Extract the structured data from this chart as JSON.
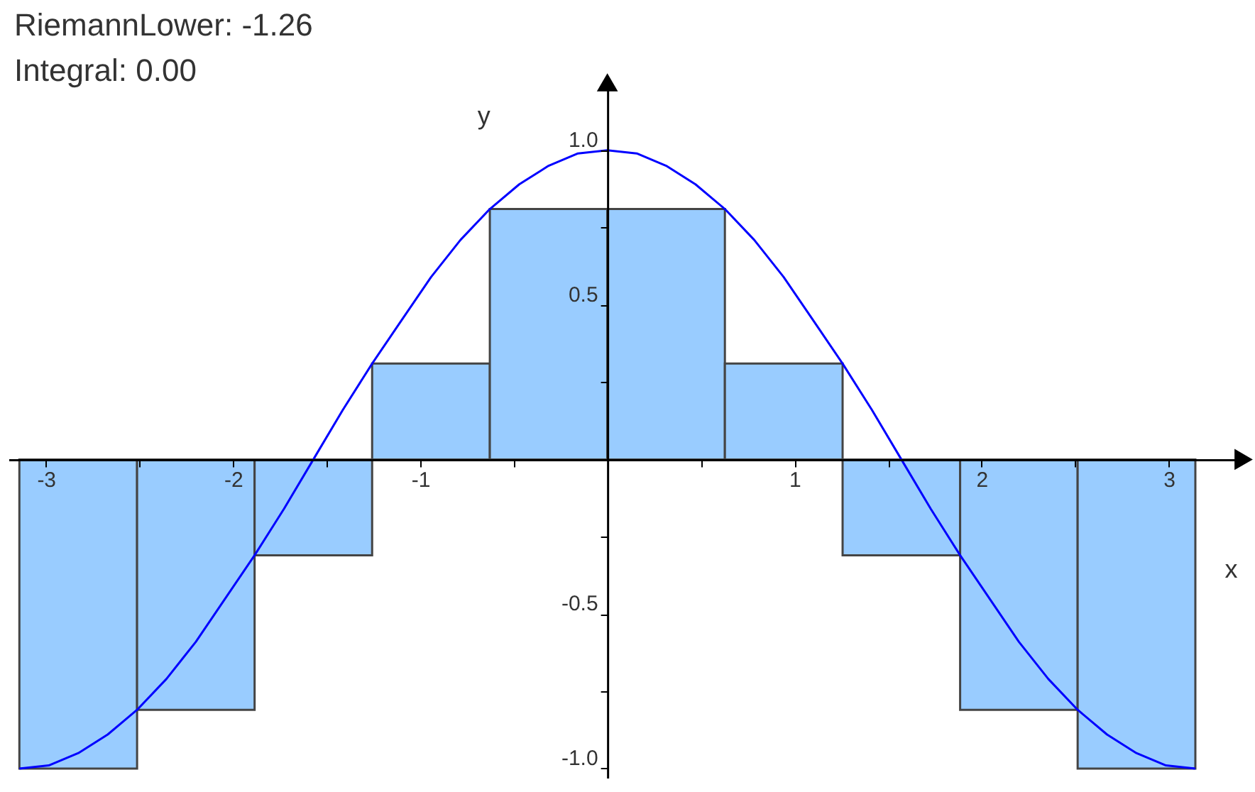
{
  "chart_data": {
    "type": "histogram",
    "annotations": [
      "RiemannLower: -1.26",
      "Integral:  0.00"
    ],
    "xlabel": "x",
    "ylabel": "y",
    "bins": [
      -3.142,
      -2.513,
      -1.885,
      -1.257,
      -0.628,
      0,
      0.628,
      1.257,
      1.885,
      2.513,
      3.142
    ],
    "values": [
      -1,
      -0.81,
      -0.31,
      0.31,
      0.81,
      0.81,
      0.31,
      -0.31,
      -0.81,
      -1
    ],
    "color": "#99ccff",
    "series": [
      {
        "type": "line",
        "color": "#0000ff",
        "x": [
          -3.142,
          -2.985,
          -2.827,
          -2.67,
          -2.513,
          -2.356,
          -2.199,
          -2.042,
          -1.885,
          -1.728,
          -1.571,
          -1.414,
          -1.257,
          -1.1,
          -0.942,
          -0.785,
          -0.628,
          -0.471,
          -0.314,
          -0.157,
          0,
          0.157,
          0.314,
          0.471,
          0.628,
          0.785,
          0.942,
          1.1,
          1.257,
          1.414,
          1.571,
          1.728,
          1.885,
          2.042,
          2.199,
          2.356,
          2.513,
          2.67,
          2.827,
          2.985,
          3.142
        ],
        "values": [
          -1,
          -0.99,
          -0.95,
          -0.89,
          -0.81,
          -0.71,
          -0.59,
          -0.45,
          -0.31,
          -0.16,
          0,
          0.16,
          0.31,
          0.45,
          0.59,
          0.71,
          0.81,
          0.89,
          0.95,
          0.99,
          1,
          0.99,
          0.95,
          0.89,
          0.81,
          0.71,
          0.59,
          0.45,
          0.31,
          0.16,
          0,
          -0.16,
          -0.31,
          -0.45,
          -0.59,
          -0.71,
          -0.81,
          -0.89,
          -0.95,
          -0.99,
          -1
        ]
      }
    ],
    "xlim": [
      -3.2,
      3.4
    ],
    "ylim": [
      -1.03,
      1.22
    ],
    "xticks": [
      -3,
      {
        "value": -2.5,
        "label": null
      },
      -2,
      {
        "value": -1.5,
        "label": null
      },
      -1,
      {
        "value": -0.5,
        "label": null
      },
      {
        "value": 0.5,
        "label": null
      },
      1,
      {
        "value": 1.5,
        "label": null
      },
      2,
      {
        "value": 2.5,
        "label": null
      },
      3
    ],
    "yticks": [
      {
        "value": -1,
        "label": "-1.0"
      },
      {
        "value": -0.75,
        "label": null
      },
      -0.5,
      {
        "value": -0.25,
        "label": null
      },
      {
        "value": 0.25,
        "label": null
      },
      0.5,
      {
        "value": 0.75,
        "label": null
      },
      {
        "value": 1,
        "label": "1.0"
      }
    ],
    "grid": false
  }
}
